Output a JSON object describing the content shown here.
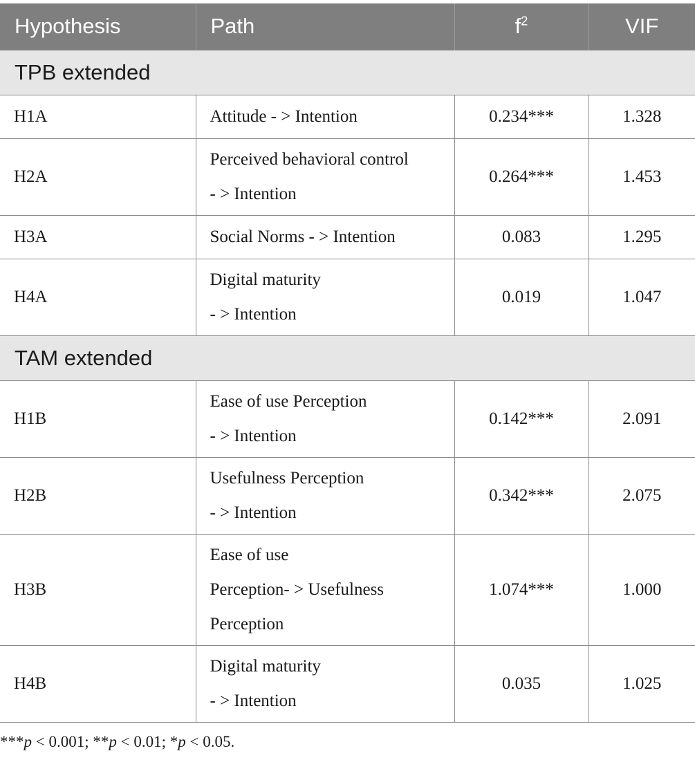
{
  "header": {
    "hypothesis": "Hypothesis",
    "path": "Path",
    "f_label": "f",
    "f_sup": "2",
    "vif": "VIF"
  },
  "sections": [
    {
      "title": "TPB extended",
      "rows": [
        {
          "hypothesis": "H1A",
          "path": [
            "Attitude - > Intention"
          ],
          "f2": "0.234***",
          "vif": "1.328"
        },
        {
          "hypothesis": "H2A",
          "path": [
            "Perceived behavioral control",
            "- > Intention"
          ],
          "f2": "0.264***",
          "vif": "1.453"
        },
        {
          "hypothesis": "H3A",
          "path": [
            "Social Norms - > Intention"
          ],
          "f2": "0.083",
          "vif": "1.295"
        },
        {
          "hypothesis": "H4A",
          "path": [
            "Digital maturity",
            "- > Intention"
          ],
          "f2": "0.019",
          "vif": "1.047"
        }
      ]
    },
    {
      "title": "TAM extended",
      "rows": [
        {
          "hypothesis": "H1B",
          "path": [
            "Ease of use Perception",
            "- > Intention"
          ],
          "f2": "0.142***",
          "vif": "2.091"
        },
        {
          "hypothesis": "H2B",
          "path": [
            "Usefulness Perception",
            "- > Intention"
          ],
          "f2": "0.342***",
          "vif": "2.075"
        },
        {
          "hypothesis": "H3B",
          "path": [
            "Ease of use",
            "Perception- > Usefulness",
            "Perception"
          ],
          "f2": "1.074***",
          "vif": "1.000"
        },
        {
          "hypothesis": "H4B",
          "path": [
            "Digital maturity",
            "- > Intention"
          ],
          "f2": "0.035",
          "vif": "1.025"
        }
      ]
    }
  ],
  "footnote": {
    "s1": "***",
    "p1": "p",
    "t1": " < 0.001; **",
    "p2": "p",
    "t2": " < 0.01; *",
    "p3": "p",
    "t3": " < 0.05."
  }
}
